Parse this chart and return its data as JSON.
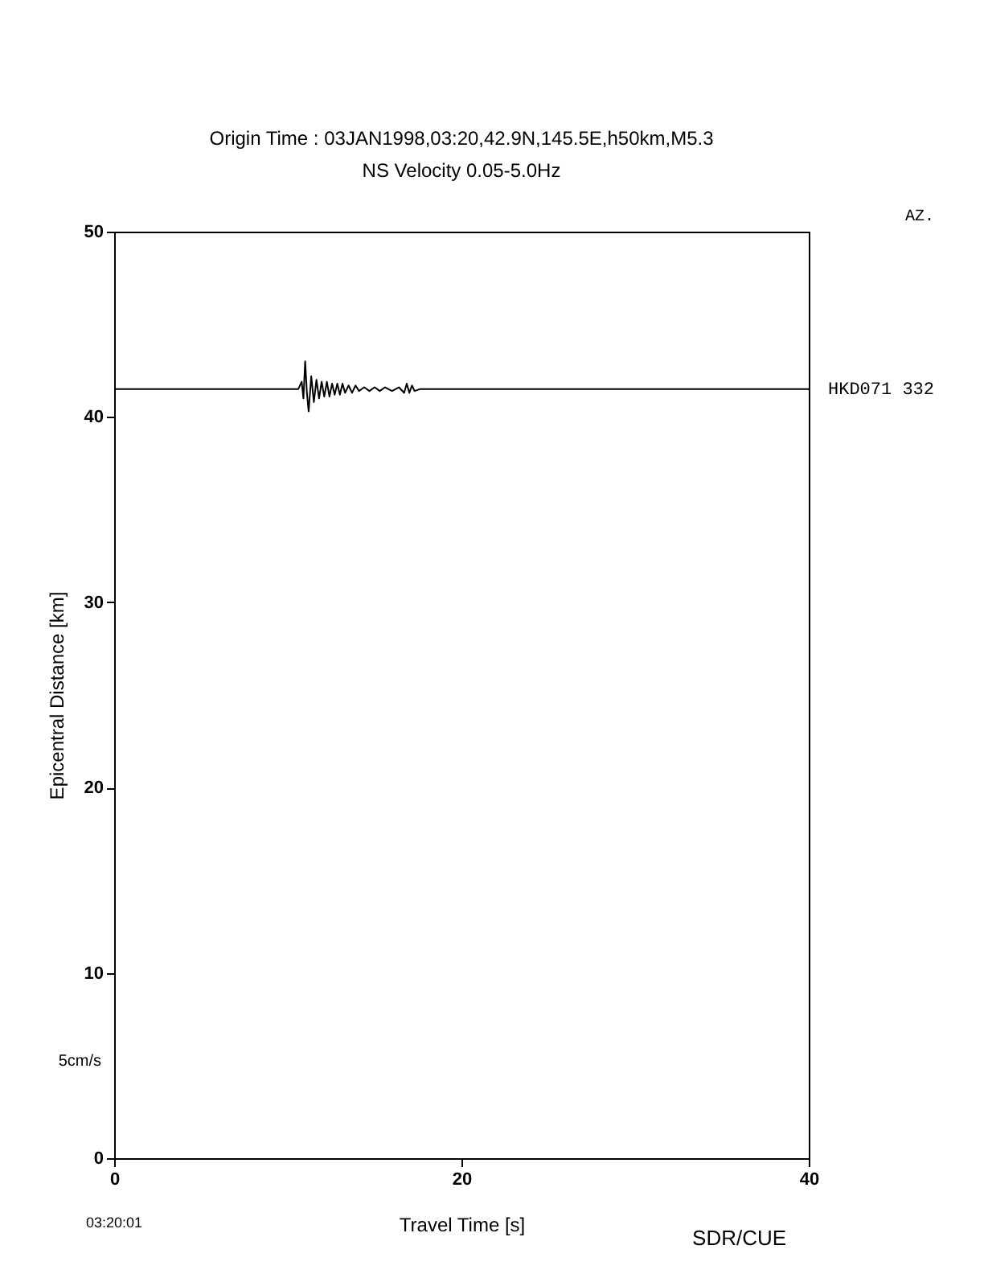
{
  "chart_data": {
    "type": "line",
    "title": "Origin Time : 03JAN1998,03:20,42.9N,145.5E,h50km,M5.3",
    "subtitle": "NS Velocity 0.05-5.0Hz",
    "xlabel": "Travel Time [s]",
    "ylabel": "Epicentral Distance [km]",
    "annotations": [
      "AZ.",
      "5cm/s",
      "03:20:01",
      "SDR/CUE"
    ],
    "xlim": [
      0,
      40
    ],
    "xticks": [
      0,
      20,
      40
    ],
    "ylim": [
      0,
      50
    ],
    "yticks": [
      0,
      10,
      20,
      30,
      40,
      50
    ],
    "grid": false,
    "marker": "none",
    "line_style": "solid",
    "series": [
      {
        "name": "HKD071 332",
        "color": "#000000",
        "x": [
          0,
          10.6,
          10.8,
          10.9,
          11.0,
          11.1,
          11.2,
          11.35,
          11.5,
          11.65,
          11.8,
          11.95,
          12.1,
          12.25,
          12.4,
          12.55,
          12.7,
          12.85,
          13.0,
          13.15,
          13.3,
          13.5,
          13.7,
          13.9,
          14.1,
          14.4,
          14.7,
          15.0,
          15.3,
          15.6,
          16.0,
          16.4,
          16.7,
          16.85,
          17.0,
          17.15,
          17.3,
          17.6,
          40
        ],
        "values": [
          41.5,
          41.5,
          41.9,
          41.0,
          43.0,
          41.3,
          40.3,
          42.2,
          40.8,
          42.0,
          41.0,
          41.9,
          41.1,
          41.9,
          41.1,
          41.8,
          41.2,
          41.8,
          41.2,
          41.8,
          41.3,
          41.7,
          41.3,
          41.7,
          41.4,
          41.6,
          41.4,
          41.6,
          41.4,
          41.6,
          41.4,
          41.6,
          41.3,
          41.8,
          41.3,
          41.7,
          41.4,
          41.5,
          41.5
        ]
      }
    ]
  }
}
